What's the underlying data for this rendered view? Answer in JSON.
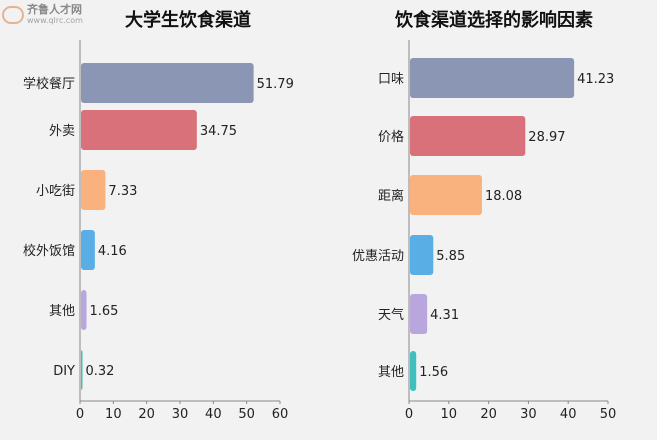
{
  "watermark": {
    "name": "齐鲁人才网",
    "url": "www.qlrc.com"
  },
  "chart_data": [
    {
      "type": "bar",
      "orientation": "horizontal",
      "title": "大学生饮食渠道",
      "categories": [
        "学校餐厅",
        "外卖",
        "小吃街",
        "校外饭馆",
        "其他",
        "DIY"
      ],
      "values": [
        51.79,
        34.75,
        7.33,
        4.16,
        1.65,
        0.32
      ],
      "xlim": [
        0,
        60
      ],
      "ticks": [
        0,
        10,
        20,
        30,
        40,
        50,
        60
      ],
      "grid": false,
      "colors": [
        "#8a96b4",
        "#d9717b",
        "#f9b27e",
        "#5aaee6",
        "#b9a6dd",
        "#3fc0bf"
      ]
    },
    {
      "type": "bar",
      "orientation": "horizontal",
      "title": "饮食渠道选择的影响因素",
      "categories": [
        "口味",
        "价格",
        "距离",
        "优惠活动",
        "天气",
        "其他"
      ],
      "values": [
        41.23,
        28.97,
        18.08,
        5.85,
        4.31,
        1.56
      ],
      "xlim": [
        0,
        50
      ],
      "ticks": [
        0,
        10,
        20,
        30,
        40,
        50
      ],
      "grid": false,
      "colors": [
        "#8a96b4",
        "#d9717b",
        "#f9b27e",
        "#5aaee6",
        "#b9a6dd",
        "#3fc0bf"
      ]
    }
  ]
}
